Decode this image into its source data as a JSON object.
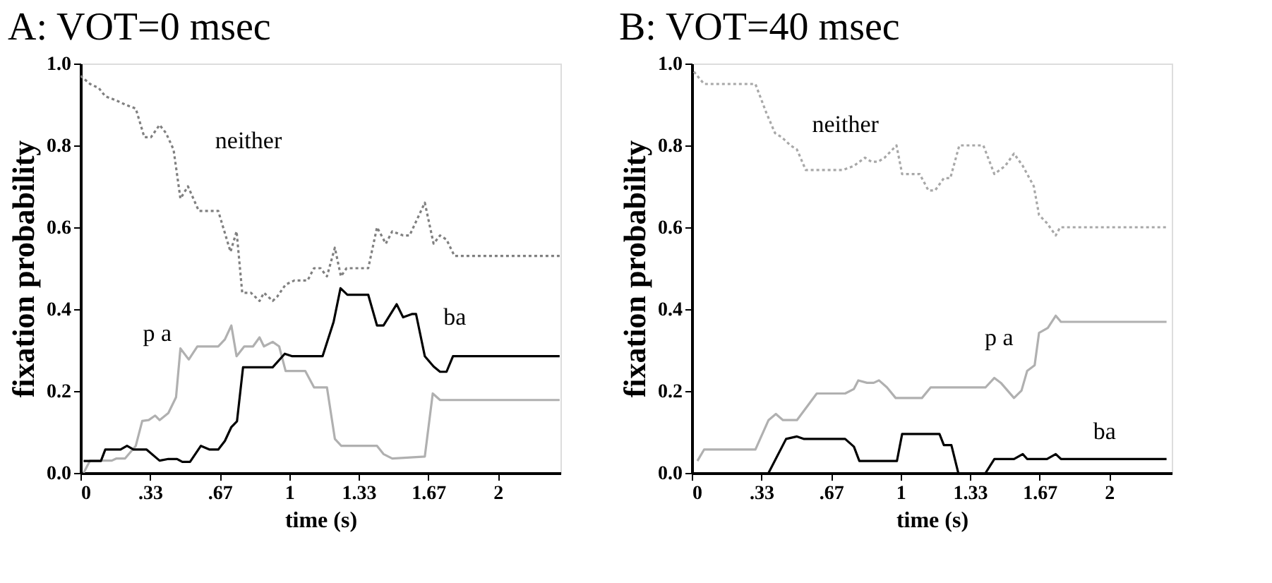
{
  "chart_data": [
    {
      "type": "line",
      "title": "A: VOT=0 msec",
      "xlabel": "time (s)",
      "ylabel": "fixation probability",
      "xlim": [
        0,
        2.3
      ],
      "ylim": [
        0,
        1
      ],
      "xticks": [
        0,
        {
          "value": 0.333,
          "label": ".33"
        },
        {
          "value": 0.667,
          "label": ".67"
        },
        1,
        {
          "value": 1.333,
          "label": "1.33"
        },
        {
          "value": 1.667,
          "label": "1.67"
        },
        2
      ],
      "yticks": [
        {
          "value": 0,
          "label": "0.0"
        },
        {
          "value": 0.2,
          "label": "0.2"
        },
        {
          "value": 0.4,
          "label": "0.4"
        },
        {
          "value": 0.6,
          "label": "0.6"
        },
        {
          "value": 0.8,
          "label": "0.8"
        },
        {
          "value": 1,
          "label": "1.0"
        }
      ],
      "grid": false,
      "series": [
        {
          "name": "neither",
          "color": "#808080",
          "line_style": "dotted",
          "x": [
            0,
            0.046,
            0.088,
            0.119,
            0.171,
            0.213,
            0.265,
            0.306,
            0.338,
            0.379,
            0.41,
            0.446,
            0.479,
            0.515,
            0.567,
            0.66,
            0.719,
            0.748,
            0.775,
            0.817,
            0.858,
            0.879,
            0.921,
            0.942,
            0.983,
            1.025,
            1.088,
            1.119,
            1.15,
            1.181,
            1.219,
            1.248,
            1.275,
            1.379,
            1.421,
            1.463,
            1.494,
            1.546,
            1.577,
            1.65,
            1.692,
            1.723,
            1.754,
            1.792,
            2.296
          ],
          "values": [
            0.97,
            0.95,
            0.94,
            0.92,
            0.91,
            0.9,
            0.89,
            0.82,
            0.82,
            0.85,
            0.83,
            0.79,
            0.67,
            0.7,
            0.64,
            0.64,
            0.54,
            0.59,
            0.44,
            0.44,
            0.42,
            0.44,
            0.42,
            0.43,
            0.46,
            0.47,
            0.47,
            0.5,
            0.5,
            0.48,
            0.55,
            0.48,
            0.5,
            0.5,
            0.6,
            0.56,
            0.59,
            0.58,
            0.58,
            0.66,
            0.56,
            0.58,
            0.57,
            0.53,
            0.53
          ]
        },
        {
          "name": "p a",
          "color": "#b0b0b0",
          "line_style": "solid",
          "x": [
            0.015,
            0.046,
            0.15,
            0.171,
            0.213,
            0.265,
            0.296,
            0.327,
            0.358,
            0.379,
            0.421,
            0.458,
            0.479,
            0.519,
            0.56,
            0.66,
            0.692,
            0.723,
            0.748,
            0.785,
            0.827,
            0.858,
            0.879,
            0.921,
            0.952,
            0.983,
            1.077,
            1.119,
            1.181,
            1.219,
            1.25,
            1.421,
            1.452,
            1.494,
            1.65,
            1.688,
            1.723,
            2.296
          ],
          "values": [
            0.0,
            0.03,
            0.03,
            0.035,
            0.035,
            0.066,
            0.127,
            0.129,
            0.14,
            0.129,
            0.146,
            0.185,
            0.304,
            0.277,
            0.309,
            0.309,
            0.326,
            0.36,
            0.285,
            0.309,
            0.309,
            0.331,
            0.309,
            0.32,
            0.309,
            0.249,
            0.249,
            0.209,
            0.209,
            0.083,
            0.066,
            0.066,
            0.046,
            0.035,
            0.04,
            0.194,
            0.178,
            0.178
          ]
        },
        {
          "name": "ba",
          "color": "#000000",
          "line_style": "solid",
          "x": [
            0.015,
            0.098,
            0.119,
            0.192,
            0.223,
            0.254,
            0.317,
            0.379,
            0.421,
            0.463,
            0.488,
            0.525,
            0.577,
            0.619,
            0.66,
            0.692,
            0.723,
            0.75,
            0.779,
            0.921,
            0.979,
            1.015,
            1.16,
            1.213,
            1.246,
            1.279,
            1.379,
            1.421,
            1.452,
            1.515,
            1.546,
            1.588,
            1.608,
            1.65,
            1.692,
            1.723,
            1.754,
            1.785,
            2.296
          ],
          "values": [
            0.029,
            0.029,
            0.057,
            0.057,
            0.066,
            0.057,
            0.057,
            0.03,
            0.034,
            0.034,
            0.027,
            0.027,
            0.066,
            0.057,
            0.057,
            0.078,
            0.112,
            0.126,
            0.258,
            0.258,
            0.291,
            0.285,
            0.285,
            0.369,
            0.451,
            0.435,
            0.435,
            0.36,
            0.36,
            0.412,
            0.38,
            0.388,
            0.388,
            0.285,
            0.26,
            0.247,
            0.247,
            0.285,
            0.285
          ]
        }
      ]
    },
    {
      "type": "line",
      "title": "B: VOT=40 msec",
      "xlabel": "time (s)",
      "ylabel": "fixation probability",
      "xlim": [
        0,
        2.3
      ],
      "ylim": [
        0,
        1
      ],
      "xticks": [
        0,
        {
          "value": 0.333,
          "label": ".33"
        },
        {
          "value": 0.667,
          "label": ".67"
        },
        1,
        {
          "value": 1.333,
          "label": "1.33"
        },
        {
          "value": 1.667,
          "label": "1.67"
        },
        2
      ],
      "yticks": [
        {
          "value": 0,
          "label": "0.0"
        },
        {
          "value": 0.2,
          "label": "0.2"
        },
        {
          "value": 0.4,
          "label": "0.4"
        },
        {
          "value": 0.6,
          "label": "0.6"
        },
        {
          "value": 0.8,
          "label": "0.8"
        },
        {
          "value": 1,
          "label": "1.0"
        }
      ],
      "grid": false,
      "series": [
        {
          "name": "neither",
          "color": "#a8a8a8",
          "line_style": "dotted",
          "x": [
            0.01,
            0.059,
            0.305,
            0.357,
            0.399,
            0.431,
            0.473,
            0.504,
            0.546,
            0.725,
            0.777,
            0.83,
            0.861,
            0.893,
            0.924,
            0.981,
            1.008,
            1.092,
            1.134,
            1.166,
            1.208,
            1.239,
            1.282,
            1.397,
            1.45,
            1.502,
            1.544,
            1.586,
            1.639,
            1.664,
            1.702,
            1.744,
            1.765,
            2.275
          ],
          "values": [
            0.98,
            0.95,
            0.95,
            0.88,
            0.83,
            0.82,
            0.8,
            0.79,
            0.74,
            0.74,
            0.75,
            0.77,
            0.76,
            0.76,
            0.77,
            0.8,
            0.73,
            0.73,
            0.69,
            0.69,
            0.72,
            0.72,
            0.8,
            0.8,
            0.73,
            0.75,
            0.78,
            0.75,
            0.7,
            0.63,
            0.61,
            0.58,
            0.6,
            0.6
          ]
        },
        {
          "name": "p a",
          "color": "#b0b0b0",
          "line_style": "solid",
          "x": [
            0.027,
            0.059,
            0.305,
            0.368,
            0.403,
            0.437,
            0.504,
            0.599,
            0.735,
            0.777,
            0.798,
            0.84,
            0.872,
            0.897,
            0.935,
            0.977,
            1.103,
            1.145,
            1.408,
            1.45,
            1.481,
            1.544,
            1.58,
            1.607,
            1.643,
            1.664,
            1.706,
            1.744,
            1.769,
            2.275
          ],
          "values": [
            0.029,
            0.057,
            0.057,
            0.129,
            0.144,
            0.129,
            0.129,
            0.194,
            0.194,
            0.205,
            0.226,
            0.22,
            0.22,
            0.226,
            0.209,
            0.183,
            0.183,
            0.209,
            0.209,
            0.232,
            0.22,
            0.183,
            0.201,
            0.249,
            0.263,
            0.342,
            0.354,
            0.384,
            0.369,
            0.369
          ]
        },
        {
          "name": "ba",
          "color": "#000000",
          "line_style": "solid",
          "x": [
            0.368,
            0.452,
            0.504,
            0.536,
            0.735,
            0.777,
            0.803,
            0.983,
            1.008,
            1.187,
            1.208,
            1.244,
            1.277,
            1.34,
            1.408,
            1.45,
            1.544,
            1.586,
            1.607,
            1.702,
            1.744,
            1.769,
            2.275
          ],
          "values": [
            0,
            0.083,
            0.089,
            0.083,
            0.083,
            0.064,
            0.029,
            0.029,
            0.095,
            0.095,
            0.068,
            0.068,
            0,
            null,
            0,
            0.034,
            0.034,
            0.046,
            0.034,
            0.034,
            0.046,
            0.034,
            0.034
          ]
        }
      ]
    }
  ]
}
